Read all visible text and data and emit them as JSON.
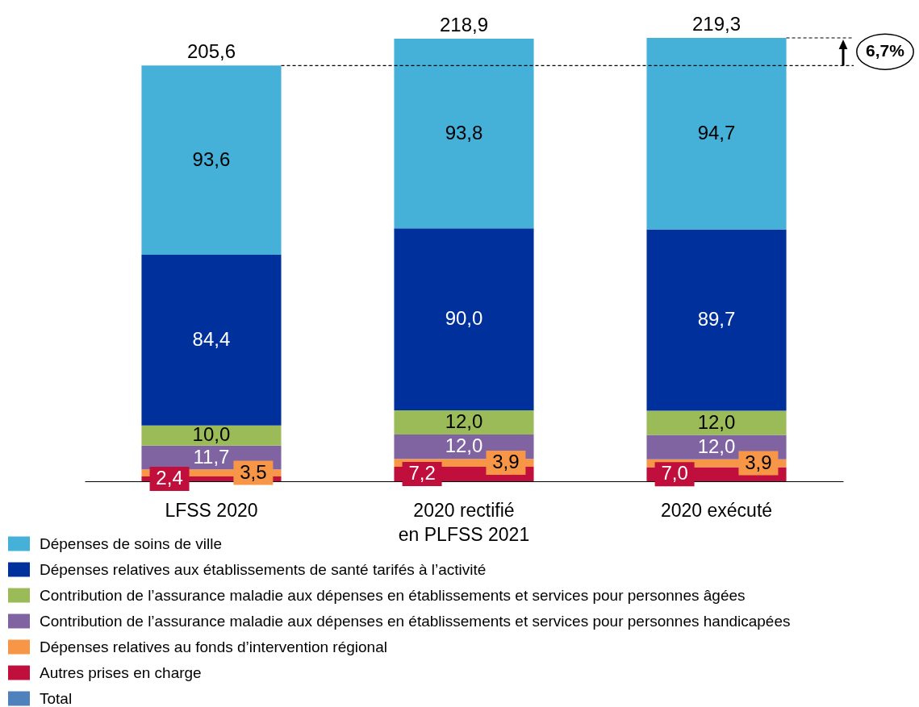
{
  "chart_data": {
    "type": "bar",
    "stacked": true,
    "legend": "bottom left",
    "categories": [
      "LFSS 2020",
      "2020 rectifié en PLFSS 2021",
      "2020 exécuté"
    ],
    "series": [
      {
        "name": "Total",
        "color": "#4f81bd",
        "values": [
          null,
          null,
          null
        ]
      },
      {
        "name": "Autres prises en charge",
        "color": "#c00f3c",
        "values": [
          2.4,
          7.2,
          7.0
        ],
        "value_labels": [
          "2,4",
          "7,2",
          "7,0"
        ]
      },
      {
        "name": "Dépenses relatives au fonds d’intervention régional",
        "color": "#f79646",
        "values": [
          3.5,
          3.9,
          3.9
        ],
        "value_labels": [
          "3,5",
          "3,9",
          "3,9"
        ]
      },
      {
        "name": "Contribution de l’assurance maladie aux dépenses en établissements et services pour personnes handicapées",
        "color": "#8064a2",
        "values": [
          11.7,
          12.0,
          12.0
        ],
        "value_labels": [
          "11,7",
          "12,0",
          "12,0"
        ]
      },
      {
        "name": "Contribution de l’assurance maladie aux dépenses en établissements et services pour personnes âgées",
        "color": "#9bbb59",
        "values": [
          10.0,
          12.0,
          12.0
        ],
        "value_labels": [
          "10,0",
          "12,0",
          "12,0"
        ]
      },
      {
        "name": "Dépenses relatives aux établissements de santé tarifés à l’activité",
        "color": "#00309b",
        "values": [
          84.4,
          90.0,
          89.7
        ],
        "value_labels": [
          "84,4",
          "90,0",
          "89,7"
        ]
      },
      {
        "name": "Dépenses de soins de ville",
        "color": "#45b1d8",
        "values": [
          93.6,
          93.8,
          94.7
        ],
        "value_labels": [
          "93,6",
          "93,8",
          "94,7"
        ]
      }
    ],
    "totals": [
      "205,6",
      "218,9",
      "219,3"
    ],
    "ref_lines": [
      {
        "axis": "y",
        "value": 205.6,
        "line_style": "dashed",
        "color": "#000000"
      },
      {
        "axis": "y",
        "value": 219.3,
        "line_style": "dashed",
        "color": "#000000"
      }
    ],
    "annotations": [
      "6,7%"
    ]
  }
}
